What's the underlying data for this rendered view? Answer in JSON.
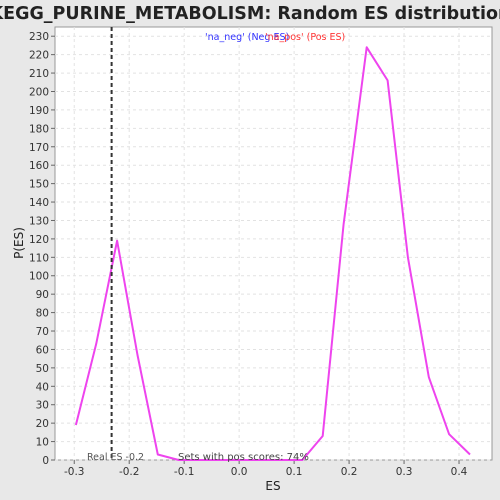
{
  "chart_data": {
    "type": "line",
    "title": "KEGG_PURINE_METABOLISM: Random ES distribution",
    "xlabel": "ES",
    "ylabel": "P(ES)",
    "xlim": [
      -0.335,
      0.46
    ],
    "ylim": [
      0,
      235
    ],
    "xticks": [
      -0.3,
      -0.2,
      -0.1,
      0.0,
      0.1,
      0.2,
      0.3,
      0.4
    ],
    "xtick_labels": [
      "-0.3",
      "-0.2",
      "-0.1",
      "0.0",
      "0.1",
      "0.2",
      "0.3",
      "0.4"
    ],
    "yticks": [
      0,
      10,
      20,
      30,
      40,
      50,
      60,
      70,
      80,
      90,
      100,
      110,
      120,
      130,
      140,
      150,
      160,
      170,
      180,
      190,
      200,
      210,
      220,
      230
    ],
    "grid": true,
    "legend": [
      {
        "label": "'na_neg' (Neg ES)",
        "color": "#3333ff"
      },
      {
        "label": "'na_pos' (Pos ES)",
        "color": "#ff3333"
      }
    ],
    "series": [
      {
        "color": "#ee44ee",
        "x": [
          -0.297,
          -0.26,
          -0.222,
          -0.185,
          -0.148,
          -0.11,
          -0.073,
          -0.035,
          0.002,
          0.04,
          0.077,
          0.115,
          0.152,
          0.19,
          0.232,
          0.27,
          0.307,
          0.345,
          0.382,
          0.42
        ],
        "y": [
          19,
          63,
          119,
          57,
          3,
          0,
          0,
          0,
          0,
          0,
          0,
          0,
          13,
          128,
          224,
          206,
          110,
          45,
          14,
          3
        ]
      }
    ],
    "marker_line": {
      "x": -0.232,
      "label": "Real ES -0.2"
    },
    "annotation": "Sets with pos scores: 74%"
  }
}
